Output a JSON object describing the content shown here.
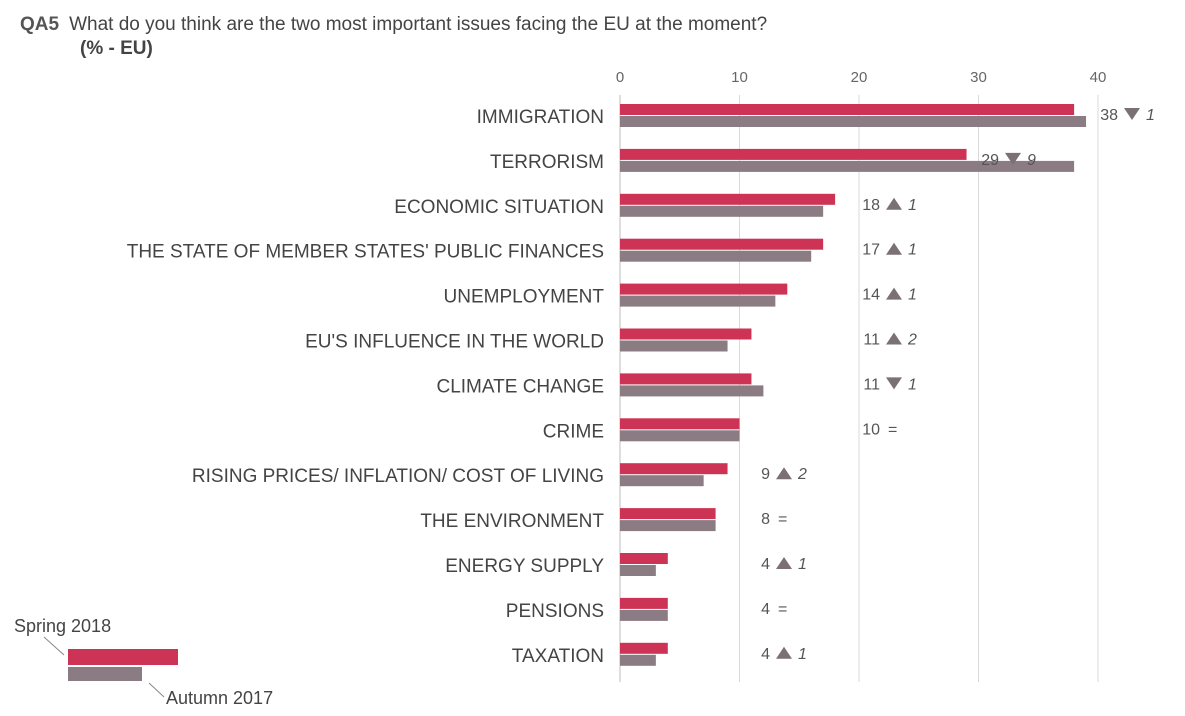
{
  "header": {
    "question_id": "QA5",
    "question": "What do you think are the two most important issues facing the EU at the moment?",
    "unit": "(% - EU)"
  },
  "colors": {
    "spring": "#cc3355",
    "autumn": "#8a7c82",
    "grid": "#d9d9d9",
    "marker": "#7a7075"
  },
  "chart_data": {
    "type": "bar",
    "orientation": "horizontal",
    "xlim": [
      0,
      40
    ],
    "xticks": [
      "0",
      "10",
      "20",
      "30",
      "40"
    ],
    "legend_placement": "bottom-left",
    "categories": [
      "IMMIGRATION",
      "TERRORISM",
      "ECONOMIC SITUATION",
      "THE STATE OF MEMBER STATES' PUBLIC FINANCES",
      "UNEMPLOYMENT",
      "EU'S INFLUENCE IN THE WORLD",
      "CLIMATE CHANGE",
      "CRIME",
      "RISING PRICES/ INFLATION/ COST OF LIVING",
      "THE ENVIRONMENT",
      "ENERGY SUPPLY",
      "PENSIONS",
      "TAXATION"
    ],
    "series": [
      {
        "name": "Spring 2018",
        "values": [
          38,
          29,
          18,
          17,
          14,
          11,
          11,
          10,
          9,
          8,
          4,
          4,
          4
        ]
      },
      {
        "name": "Autumn 2017",
        "values": [
          39,
          38,
          17,
          16,
          13,
          9,
          12,
          10,
          7,
          8,
          3,
          4,
          3
        ]
      }
    ],
    "labels": [
      {
        "value": "38",
        "dir": "down",
        "change": "1"
      },
      {
        "value": "29",
        "dir": "down",
        "change": "9"
      },
      {
        "value": "18",
        "dir": "up",
        "change": "1"
      },
      {
        "value": "17",
        "dir": "up",
        "change": "1"
      },
      {
        "value": "14",
        "dir": "up",
        "change": "1"
      },
      {
        "value": "11",
        "dir": "up",
        "change": "2"
      },
      {
        "value": "11",
        "dir": "down",
        "change": "1"
      },
      {
        "value": "10",
        "dir": "equal",
        "change": ""
      },
      {
        "value": "9",
        "dir": "up",
        "change": "2"
      },
      {
        "value": "8",
        "dir": "equal",
        "change": ""
      },
      {
        "value": "4",
        "dir": "up",
        "change": "1"
      },
      {
        "value": "4",
        "dir": "equal",
        "change": ""
      },
      {
        "value": "4",
        "dir": "up",
        "change": "1"
      }
    ]
  }
}
